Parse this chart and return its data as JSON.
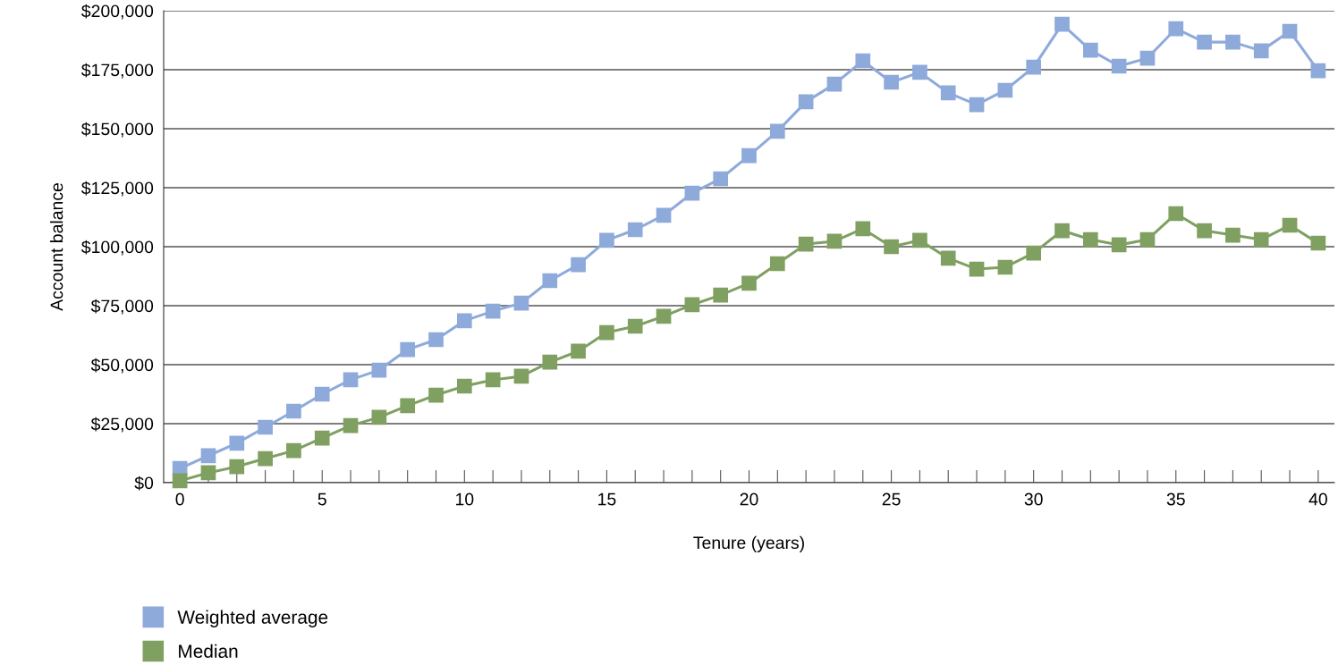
{
  "chart_data": {
    "type": "line",
    "xlabel": "Tenure (years)",
    "ylabel": "Account balance",
    "x": [
      0,
      1,
      2,
      3,
      4,
      5,
      6,
      7,
      8,
      9,
      10,
      11,
      12,
      13,
      14,
      15,
      16,
      17,
      18,
      19,
      20,
      21,
      22,
      23,
      24,
      25,
      26,
      27,
      28,
      29,
      30,
      31,
      32,
      33,
      34,
      35,
      36,
      37,
      38,
      39,
      40
    ],
    "series": [
      {
        "name": "Weighted average",
        "color": "#8eaadb",
        "values": [
          6000,
          11400,
          16700,
          23500,
          30300,
          37500,
          43600,
          47700,
          56400,
          60600,
          68600,
          72700,
          76100,
          85600,
          92400,
          102700,
          107200,
          113300,
          122700,
          128800,
          138600,
          148900,
          161400,
          168900,
          178800,
          169700,
          173900,
          165200,
          160200,
          166300,
          176100,
          194300,
          183300,
          176500,
          179900,
          192400,
          186700,
          186700,
          183000,
          191300,
          174600
        ]
      },
      {
        "name": "Median",
        "color": "#80a062",
        "values": [
          800,
          4200,
          6800,
          10200,
          13600,
          18900,
          24200,
          27700,
          32600,
          37100,
          40900,
          43600,
          45100,
          51100,
          55700,
          63600,
          66300,
          70500,
          75400,
          79500,
          84500,
          92800,
          101100,
          102300,
          107600,
          100000,
          102700,
          95100,
          90500,
          91300,
          97300,
          106800,
          103000,
          100800,
          103000,
          114000,
          106800,
          104900,
          103000,
          109100,
          101500
        ]
      }
    ],
    "xlim": [
      -0.57,
      40.57
    ],
    "xticks": [
      0,
      {
        "value": 1,
        "label": null
      },
      {
        "value": 2,
        "label": null
      },
      {
        "value": 3,
        "label": null
      },
      {
        "value": 4,
        "label": null
      },
      5,
      {
        "value": 6,
        "label": null
      },
      {
        "value": 7,
        "label": null
      },
      {
        "value": 8,
        "label": null
      },
      {
        "value": 9,
        "label": null
      },
      10,
      {
        "value": 11,
        "label": null
      },
      {
        "value": 12,
        "label": null
      },
      {
        "value": 13,
        "label": null
      },
      {
        "value": 14,
        "label": null
      },
      15,
      {
        "value": 16,
        "label": null
      },
      {
        "value": 17,
        "label": null
      },
      {
        "value": 18,
        "label": null
      },
      {
        "value": 19,
        "label": null
      },
      20,
      {
        "value": 21,
        "label": null
      },
      {
        "value": 22,
        "label": null
      },
      {
        "value": 23,
        "label": null
      },
      {
        "value": 24,
        "label": null
      },
      25,
      {
        "value": 26,
        "label": null
      },
      {
        "value": 27,
        "label": null
      },
      {
        "value": 28,
        "label": null
      },
      {
        "value": 29,
        "label": null
      },
      30,
      {
        "value": 31,
        "label": null
      },
      {
        "value": 32,
        "label": null
      },
      {
        "value": 33,
        "label": null
      },
      {
        "value": 34,
        "label": null
      },
      35,
      {
        "value": 36,
        "label": null
      },
      {
        "value": 37,
        "label": null
      },
      {
        "value": 38,
        "label": null
      },
      {
        "value": 39,
        "label": null
      },
      40
    ],
    "ylim": [
      0,
      200000
    ],
    "yticks": [
      {
        "value": 0,
        "label": "$0"
      },
      {
        "value": 25000,
        "label": "$25,000"
      },
      {
        "value": 50000,
        "label": "$50,000"
      },
      {
        "value": 75000,
        "label": "$75,000"
      },
      {
        "value": 100000,
        "label": "$100,000"
      },
      {
        "value": 125000,
        "label": "$125,000"
      },
      {
        "value": 150000,
        "label": "$150,000"
      },
      {
        "value": 175000,
        "label": "$175,000"
      },
      {
        "value": 200000,
        "label": "$200,000"
      }
    ],
    "grid": "y",
    "legend": "bottom left",
    "marker": "square",
    "line_style": "solid"
  }
}
